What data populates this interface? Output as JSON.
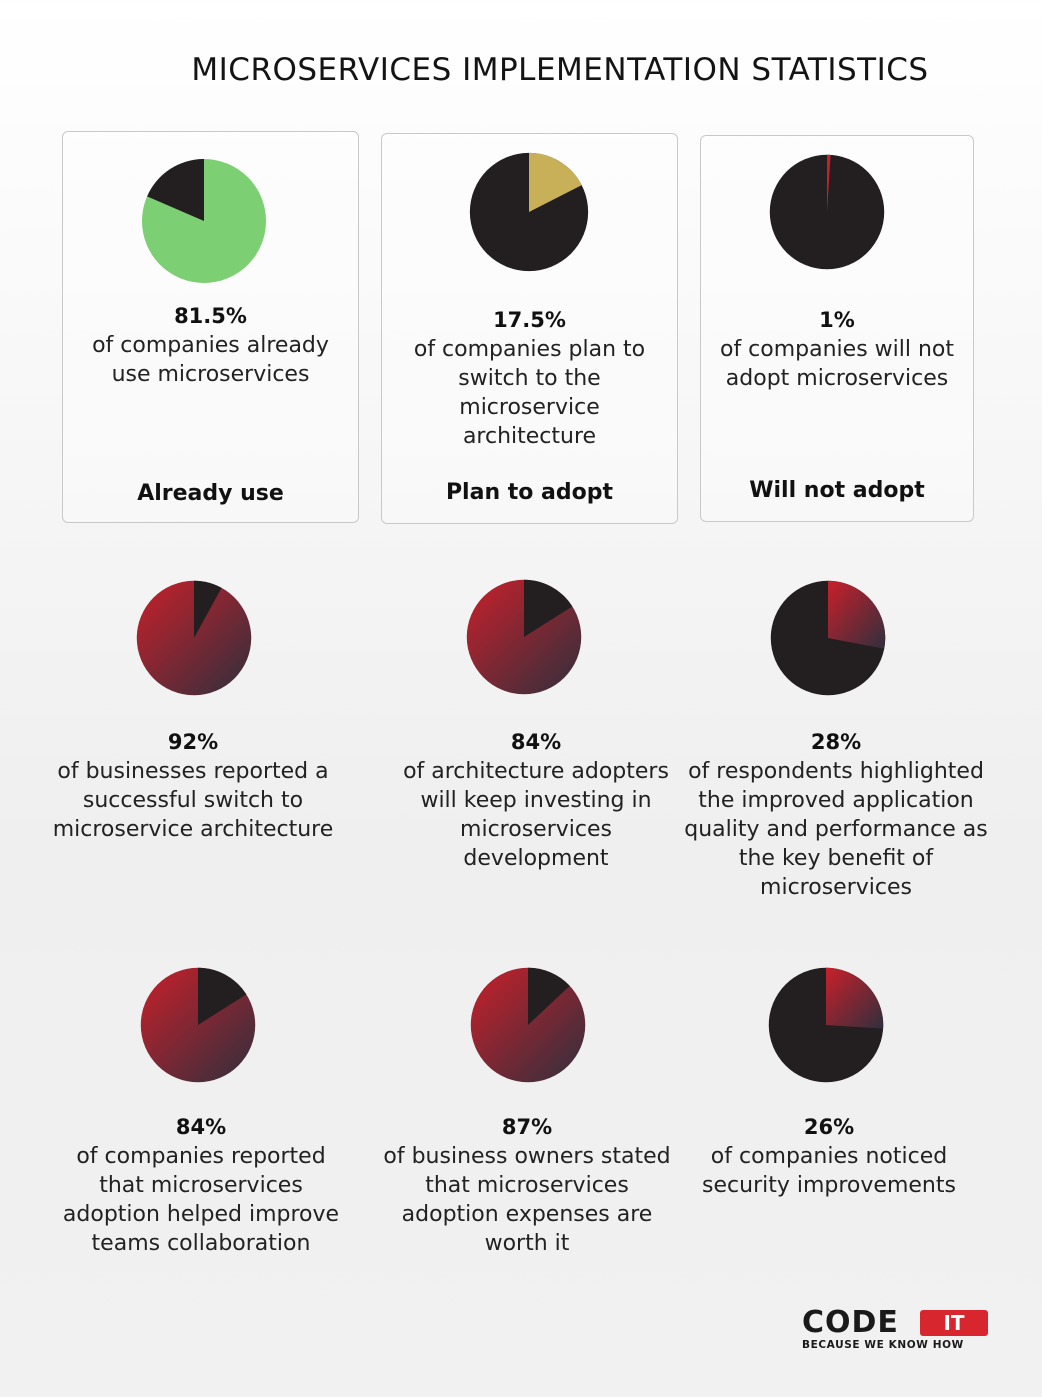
{
  "title": "MICROSERVICES IMPLEMENTATION STATISTICS",
  "colors": {
    "dark": "#231f20",
    "green": "#7ccf72",
    "gold": "#c8b058",
    "red": "#c8202a",
    "red_gradient_end": "#2f2f3d"
  },
  "chart_data": [
    {
      "type": "pie",
      "value": 81.5,
      "percent_label": "81.5%",
      "description": "of companies already use microservices",
      "label": "Already use",
      "highlight_color": "#7ccf72"
    },
    {
      "type": "pie",
      "value": 17.5,
      "percent_label": "17.5%",
      "description": "of companies plan to switch to the microservice architecture",
      "label": "Plan to adopt",
      "highlight_color": "#c8b058"
    },
    {
      "type": "pie",
      "value": 1,
      "percent_label": "1%",
      "description": "of companies will not adopt microservices",
      "label": "Will not adopt",
      "highlight_color": "#c8202a"
    },
    {
      "type": "pie",
      "value": 92,
      "percent_label": "92%",
      "description": "of businesses reported a successful switch to microservice architecture"
    },
    {
      "type": "pie",
      "value": 84,
      "percent_label": "84%",
      "description": "of architecture adopters will keep investing in microservices development"
    },
    {
      "type": "pie",
      "value": 28,
      "percent_label": "28%",
      "description": "of respondents highlighted the improved application quality and performance as the key benefit of microservices"
    },
    {
      "type": "pie",
      "value": 84,
      "percent_label": "84%",
      "description": "of companies reported that microservices adoption helped improve teams collaboration"
    },
    {
      "type": "pie",
      "value": 87,
      "percent_label": "87%",
      "description": "of business owners stated that microservices adoption expenses are worth it"
    },
    {
      "type": "pie",
      "value": 26,
      "percent_label": "26%",
      "description": "of companies noticed security improvements"
    }
  ],
  "logo": {
    "code": "CODE",
    "it": "IT",
    "tagline": "BECAUSE WE KNOW HOW"
  }
}
